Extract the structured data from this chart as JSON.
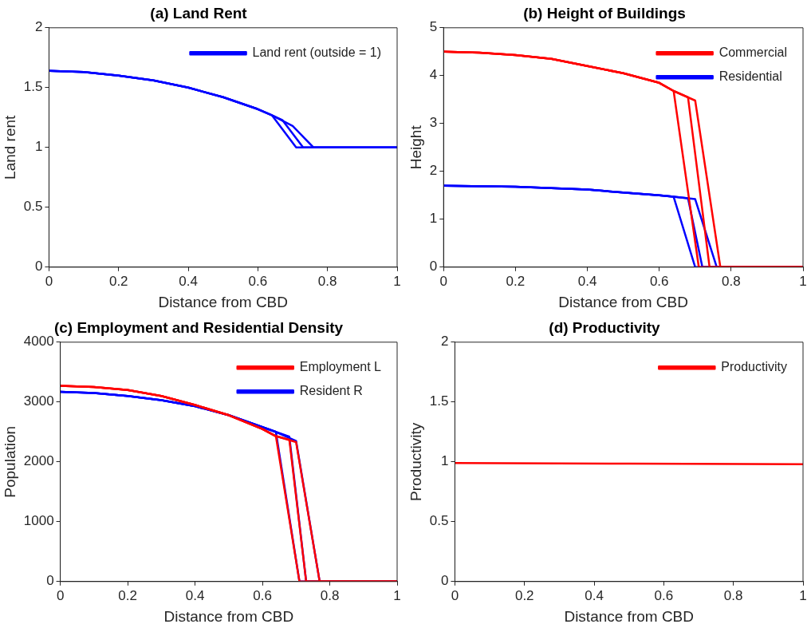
{
  "chart_data": [
    {
      "type": "line",
      "title": "(a) Land Rent",
      "xlabel": "Distance from CBD",
      "ylabel": "Land rent",
      "xlim": [
        0,
        1
      ],
      "ylim": [
        0,
        2
      ],
      "xticks": [
        0,
        0.2,
        0.4,
        0.6,
        0.8,
        1
      ],
      "yticks": [
        0,
        0.5,
        1,
        1.5,
        2
      ],
      "grid": false,
      "legend": "top right",
      "series": [
        {
          "name": "Land rent (outside = 1)",
          "color": "#0000ff",
          "x": [
            0,
            0.1,
            0.2,
            0.3,
            0.4,
            0.5,
            0.6,
            0.64,
            0.71,
            1
          ],
          "values": [
            1.64,
            1.63,
            1.6,
            1.56,
            1.5,
            1.42,
            1.32,
            1.27,
            1,
            1
          ]
        },
        {
          "color": "#0000ff",
          "x": [
            0,
            0.1,
            0.2,
            0.3,
            0.4,
            0.5,
            0.6,
            0.64,
            0.67,
            0.73,
            1
          ],
          "values": [
            1.64,
            1.63,
            1.6,
            1.56,
            1.5,
            1.42,
            1.32,
            1.27,
            1.23,
            1,
            1
          ]
        },
        {
          "color": "#0000ff",
          "x": [
            0,
            0.1,
            0.2,
            0.3,
            0.4,
            0.5,
            0.6,
            0.64,
            0.7,
            0.76,
            1
          ],
          "values": [
            1.64,
            1.63,
            1.6,
            1.56,
            1.5,
            1.42,
            1.32,
            1.27,
            1.18,
            1,
            1
          ]
        }
      ]
    },
    {
      "type": "line",
      "title": "(b) Height of Buildings",
      "xlabel": "Distance from CBD",
      "ylabel": "Height",
      "xlim": [
        0,
        1
      ],
      "ylim": [
        0,
        5
      ],
      "xticks": [
        0,
        0.2,
        0.4,
        0.6,
        0.8,
        1
      ],
      "yticks": [
        0,
        1,
        2,
        3,
        4,
        5
      ],
      "grid": false,
      "legend": "top right",
      "series": [
        {
          "name": "Commercial",
          "color": "#ff0000",
          "x": [
            0,
            0.1,
            0.2,
            0.3,
            0.4,
            0.5,
            0.6,
            0.64,
            0.71,
            1
          ],
          "values": [
            4.5,
            4.48,
            4.43,
            4.35,
            4.2,
            4.05,
            3.85,
            3.68,
            0,
            0
          ]
        },
        {
          "color": "#ff0000",
          "x": [
            0,
            0.1,
            0.2,
            0.3,
            0.4,
            0.5,
            0.6,
            0.64,
            0.68,
            0.74,
            1
          ],
          "values": [
            4.5,
            4.48,
            4.43,
            4.35,
            4.2,
            4.05,
            3.85,
            3.68,
            3.55,
            0,
            0
          ]
        },
        {
          "color": "#ff0000",
          "x": [
            0,
            0.1,
            0.2,
            0.3,
            0.4,
            0.5,
            0.6,
            0.64,
            0.7,
            0.77,
            1
          ],
          "values": [
            4.5,
            4.48,
            4.43,
            4.35,
            4.2,
            4.05,
            3.85,
            3.68,
            3.48,
            0,
            0
          ]
        },
        {
          "name": "Residential",
          "color": "#0000ff",
          "x": [
            0,
            0.2,
            0.4,
            0.6,
            0.64,
            0.7,
            1
          ],
          "values": [
            1.7,
            1.68,
            1.62,
            1.5,
            1.47,
            0,
            0
          ]
        },
        {
          "color": "#0000ff",
          "x": [
            0,
            0.2,
            0.4,
            0.6,
            0.64,
            0.68,
            0.72,
            1
          ],
          "values": [
            1.7,
            1.68,
            1.62,
            1.5,
            1.47,
            1.44,
            0,
            0
          ]
        },
        {
          "color": "#0000ff",
          "x": [
            0,
            0.2,
            0.4,
            0.6,
            0.64,
            0.7,
            0.76,
            1
          ],
          "values": [
            1.7,
            1.68,
            1.62,
            1.5,
            1.47,
            1.42,
            0,
            0
          ]
        }
      ]
    },
    {
      "type": "line",
      "title": "(c) Employment and Residential Density",
      "xlabel": "Distance from CBD",
      "ylabel": "Population",
      "xlim": [
        0,
        1
      ],
      "ylim": [
        0,
        4000
      ],
      "xticks": [
        0,
        0.2,
        0.4,
        0.6,
        0.8,
        1
      ],
      "yticks": [
        0,
        1000,
        2000,
        3000,
        4000
      ],
      "grid": false,
      "legend": "top right",
      "series": [
        {
          "name": "Employment L",
          "color": "#ff0000",
          "x": [
            0,
            0.1,
            0.2,
            0.3,
            0.4,
            0.5,
            0.6,
            0.64,
            0.71,
            1
          ],
          "values": [
            3270,
            3250,
            3200,
            3100,
            2950,
            2780,
            2550,
            2430,
            0,
            0
          ]
        },
        {
          "color": "#ff0000",
          "x": [
            0,
            0.1,
            0.2,
            0.3,
            0.4,
            0.5,
            0.6,
            0.64,
            0.68,
            0.73,
            1
          ],
          "values": [
            3270,
            3250,
            3200,
            3100,
            2950,
            2780,
            2550,
            2430,
            2370,
            0,
            0
          ]
        },
        {
          "color": "#ff0000",
          "x": [
            0,
            0.1,
            0.2,
            0.3,
            0.4,
            0.5,
            0.6,
            0.64,
            0.7,
            0.77,
            1
          ],
          "values": [
            3270,
            3250,
            3200,
            3100,
            2950,
            2780,
            2550,
            2430,
            2330,
            0,
            0
          ]
        },
        {
          "name": "Resident R",
          "color": "#0000ff",
          "x": [
            0,
            0.1,
            0.2,
            0.3,
            0.4,
            0.5,
            0.6,
            0.64,
            0.71,
            1
          ],
          "values": [
            3170,
            3150,
            3100,
            3030,
            2930,
            2780,
            2580,
            2500,
            0,
            0
          ]
        },
        {
          "color": "#0000ff",
          "x": [
            0,
            0.1,
            0.2,
            0.3,
            0.4,
            0.5,
            0.6,
            0.64,
            0.68,
            0.73,
            1
          ],
          "values": [
            3170,
            3150,
            3100,
            3030,
            2930,
            2780,
            2580,
            2500,
            2420,
            0,
            0
          ]
        },
        {
          "color": "#0000ff",
          "x": [
            0,
            0.1,
            0.2,
            0.3,
            0.4,
            0.5,
            0.6,
            0.64,
            0.7,
            0.77,
            1
          ],
          "values": [
            3170,
            3150,
            3100,
            3030,
            2930,
            2780,
            2580,
            2500,
            2350,
            0,
            0
          ]
        }
      ]
    },
    {
      "type": "line",
      "title": "(d) Productivity",
      "xlabel": "Distance from CBD",
      "ylabel": "Productivity",
      "xlim": [
        0,
        1
      ],
      "ylim": [
        0,
        2
      ],
      "xticks": [
        0,
        0.2,
        0.4,
        0.6,
        0.8,
        1
      ],
      "yticks": [
        0,
        0.5,
        1,
        1.5,
        2
      ],
      "grid": false,
      "legend": "top right",
      "series": [
        {
          "name": "Productivity",
          "color": "#ff0000",
          "x": [
            0,
            0.5,
            1
          ],
          "values": [
            0.99,
            0.985,
            0.98
          ]
        }
      ]
    }
  ]
}
